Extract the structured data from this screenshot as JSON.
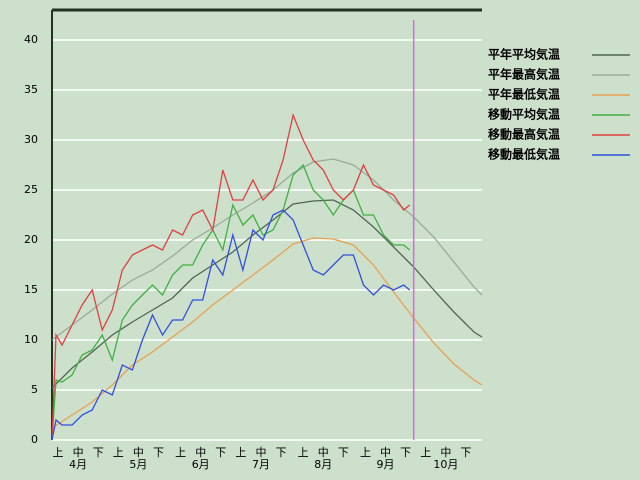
{
  "chart_data": {
    "type": "line",
    "xlim": [
      0,
      214
    ],
    "ylim": [
      0,
      43
    ],
    "yticks": [
      0,
      5,
      10,
      15,
      20,
      25,
      30,
      35,
      40
    ],
    "grid": true,
    "xticks": [
      {
        "value": 3,
        "label": "上"
      },
      {
        "value": 13,
        "label": "中"
      },
      {
        "value": 23,
        "label": "下"
      },
      {
        "value": 33,
        "label": "上"
      },
      {
        "value": 43,
        "label": "中"
      },
      {
        "value": 53,
        "label": "下"
      },
      {
        "value": 64,
        "label": "上"
      },
      {
        "value": 74,
        "label": "中"
      },
      {
        "value": 84,
        "label": "下"
      },
      {
        "value": 94,
        "label": "上"
      },
      {
        "value": 104,
        "label": "中"
      },
      {
        "value": 114,
        "label": "下"
      },
      {
        "value": 125,
        "label": "上"
      },
      {
        "value": 135,
        "label": "中"
      },
      {
        "value": 145,
        "label": "下"
      },
      {
        "value": 156,
        "label": "上"
      },
      {
        "value": 166,
        "label": "中"
      },
      {
        "value": 176,
        "label": "下"
      },
      {
        "value": 186,
        "label": "上"
      },
      {
        "value": 196,
        "label": "中"
      },
      {
        "value": 206,
        "label": "下"
      }
    ],
    "month_ticks": [
      {
        "value": 13,
        "label": "4月"
      },
      {
        "value": 43,
        "label": "5月"
      },
      {
        "value": 74,
        "label": "6月"
      },
      {
        "value": 104,
        "label": "7月"
      },
      {
        "value": 135,
        "label": "8月"
      },
      {
        "value": 166,
        "label": "9月"
      },
      {
        "value": 196,
        "label": "10月"
      }
    ],
    "marker_x": 180,
    "marker_color": "#dd66dd",
    "legend": "right",
    "series": [
      {
        "name": "平年平均気温",
        "color": "#4f6650",
        "x": [
          0,
          10,
          20,
          30,
          40,
          50,
          60,
          70,
          80,
          90,
          100,
          110,
          120,
          130,
          140,
          150,
          160,
          170,
          180,
          190,
          200,
          210,
          214
        ],
        "values": [
          5.2,
          7.2,
          8.8,
          10.5,
          11.8,
          13.0,
          14.2,
          16.2,
          17.5,
          18.8,
          20.5,
          22.0,
          23.6,
          23.9,
          24.0,
          23.0,
          21.3,
          19.3,
          17.3,
          15.0,
          12.8,
          10.8,
          10.3
        ]
      },
      {
        "name": "平年最高気温",
        "color": "#99aa99",
        "x": [
          0,
          10,
          20,
          30,
          40,
          50,
          60,
          70,
          80,
          90,
          100,
          110,
          120,
          130,
          140,
          150,
          160,
          170,
          180,
          190,
          200,
          210,
          214
        ],
        "values": [
          10,
          11.5,
          13,
          14.6,
          16,
          17,
          18.4,
          20,
          21.2,
          22.5,
          23.7,
          25,
          26.7,
          27.8,
          28.1,
          27.5,
          26,
          24,
          22.3,
          20.3,
          17.8,
          15.3,
          14.5
        ]
      },
      {
        "name": "平年最低気温",
        "color": "#e8a050",
        "x": [
          0,
          10,
          20,
          30,
          40,
          50,
          60,
          70,
          80,
          90,
          100,
          110,
          120,
          130,
          140,
          150,
          160,
          170,
          180,
          190,
          200,
          210,
          214
        ],
        "values": [
          1.2,
          2.5,
          3.8,
          5.5,
          7.5,
          8.8,
          10.3,
          11.8,
          13.5,
          15,
          16.5,
          18,
          19.6,
          20.2,
          20.1,
          19.5,
          17.5,
          14.8,
          12.2,
          9.7,
          7.6,
          6.0,
          5.5
        ]
      },
      {
        "name": "移動平均気温",
        "color": "#40b040",
        "x": [
          0,
          2,
          5,
          10,
          15,
          20,
          25,
          30,
          35,
          40,
          45,
          50,
          55,
          60,
          65,
          70,
          75,
          80,
          85,
          90,
          95,
          100,
          105,
          110,
          115,
          120,
          125,
          130,
          135,
          140,
          145,
          150,
          155,
          160,
          165,
          170,
          175,
          178
        ],
        "values": [
          0,
          6,
          5.8,
          6.5,
          8.5,
          9,
          10.5,
          8,
          12,
          13.5,
          14.5,
          15.5,
          14.5,
          16.5,
          17.5,
          17.5,
          19.5,
          21,
          19,
          23.5,
          21.5,
          22.5,
          20.5,
          21,
          23,
          26.5,
          27.5,
          25,
          24,
          22.5,
          24,
          25,
          22.5,
          22.5,
          20.5,
          19.5,
          19.5,
          19
        ]
      },
      {
        "name": "移動最高気温",
        "color": "#e04040",
        "x": [
          0,
          2,
          5,
          10,
          15,
          20,
          25,
          30,
          35,
          40,
          45,
          50,
          55,
          60,
          65,
          70,
          75,
          80,
          85,
          90,
          95,
          100,
          105,
          110,
          115,
          120,
          125,
          130,
          135,
          140,
          145,
          150,
          155,
          160,
          165,
          170,
          175,
          178
        ],
        "values": [
          0,
          10.5,
          9.5,
          11.5,
          13.5,
          15,
          11,
          13,
          17,
          18.5,
          19,
          19.5,
          19,
          21,
          20.5,
          22.5,
          23,
          21,
          27,
          24,
          24,
          26,
          24,
          25,
          28,
          32.5,
          30,
          28,
          27,
          25,
          24,
          25,
          27.5,
          25.5,
          25,
          24.5,
          23,
          23.5
        ]
      },
      {
        "name": "移動最低気温",
        "color": "#3050e0",
        "x": [
          0,
          2,
          5,
          10,
          15,
          20,
          25,
          30,
          35,
          40,
          45,
          50,
          55,
          60,
          65,
          70,
          75,
          80,
          85,
          90,
          95,
          100,
          105,
          110,
          115,
          120,
          125,
          130,
          135,
          140,
          145,
          150,
          155,
          160,
          165,
          170,
          175,
          178
        ],
        "values": [
          0,
          2,
          1.5,
          1.5,
          2.5,
          3,
          5,
          4.5,
          7.5,
          7,
          10,
          12.5,
          10.5,
          12,
          12,
          14,
          14,
          18,
          16.5,
          20.5,
          17,
          21,
          20,
          22.5,
          23,
          22,
          19.5,
          17,
          16.5,
          17.5,
          18.5,
          18.5,
          15.5,
          14.5,
          15.5,
          15,
          15.5,
          15
        ]
      }
    ]
  }
}
